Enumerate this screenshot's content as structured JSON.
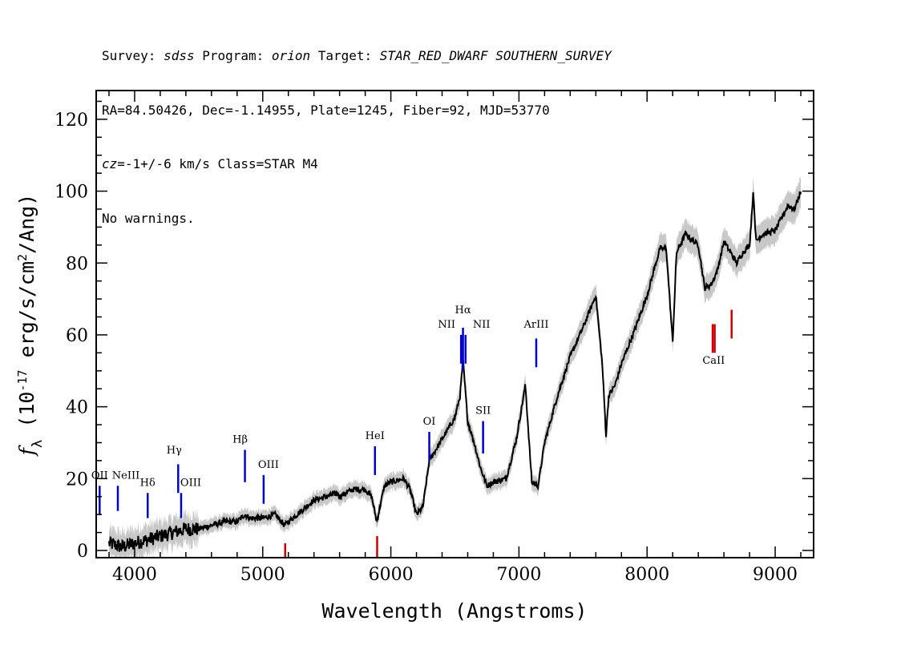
{
  "header": {
    "line1": {
      "survey_label": "Survey: ",
      "survey": "sdss",
      "program_label": " Program: ",
      "program": "orion",
      "target_label": " Target: ",
      "target": "STAR_RED_DWARF SOUTHERN_SURVEY"
    },
    "line2": "RA=84.50426, Dec=-1.14955, Plate=1245, Fiber=92, MJD=53770",
    "line3": {
      "cz_label": "cz",
      "cz_value": "=-1+/-6",
      "cz_unit": " km/s Class=STAR M4"
    },
    "line4": "No warnings."
  },
  "chart_data": {
    "type": "line",
    "xlabel": "Wavelength (Angstroms)",
    "ylabel_parts": [
      "f",
      "λ",
      " (10",
      "-17",
      " erg/s/cm",
      "2",
      "/Ang)"
    ],
    "xlim": [
      3700,
      9300
    ],
    "ylim": [
      -2,
      128
    ],
    "x_ticks": [
      4000,
      5000,
      6000,
      7000,
      8000,
      9000
    ],
    "y_ticks": [
      0,
      20,
      40,
      60,
      80,
      100,
      120
    ],
    "grid": false,
    "colors": {
      "flux": "#000000",
      "error_band": "#c8c8c8",
      "emission_lines": "#0000cc",
      "absorption_lines": "#cc0000"
    },
    "series": [
      {
        "x": [
          3800,
          3900,
          4000,
          4100,
          4200,
          4300,
          4400,
          4500,
          4600,
          4700,
          4800,
          4860,
          4900,
          5000,
          5100,
          5170,
          5200,
          5300,
          5400,
          5500,
          5580,
          5600,
          5700,
          5800,
          5850,
          5890,
          5950,
          6000,
          6100,
          6150,
          6200,
          6250,
          6300,
          6400,
          6500,
          6540,
          6563,
          6600,
          6650,
          6700,
          6750,
          6800,
          6900,
          6980,
          7050,
          7100,
          7150,
          7200,
          7300,
          7400,
          7500,
          7600,
          7650,
          7680,
          7700,
          7750,
          7800,
          7900,
          8000,
          8100,
          8150,
          8190,
          8200,
          8230,
          8300,
          8400,
          8450,
          8500,
          8550,
          8600,
          8700,
          8750,
          8800,
          8830,
          8850,
          8900,
          9000,
          9100,
          9150,
          9200
        ],
        "y": [
          2,
          1,
          2,
          3,
          4,
          5,
          6,
          6,
          7,
          8,
          8,
          10,
          9,
          9,
          10,
          7,
          8,
          11,
          14,
          15,
          16,
          15,
          17,
          17,
          15,
          8,
          18,
          19,
          20,
          17,
          10,
          12,
          25,
          31,
          37,
          43,
          53,
          36,
          30,
          23,
          18,
          19,
          20,
          31,
          46,
          19,
          18,
          30,
          43,
          54,
          62,
          71,
          52,
          32,
          43,
          46,
          52,
          61,
          71,
          84,
          84,
          63,
          58,
          83,
          88,
          85,
          73,
          74,
          78,
          86,
          80,
          83,
          85,
          100,
          86,
          88,
          89,
          96,
          95,
          100
        ]
      }
    ],
    "emission_lines": [
      {
        "label": "OII",
        "wavelength": 3727
      },
      {
        "label": "NeIII",
        "wavelength": 3869
      },
      {
        "label": "Hδ",
        "wavelength": 4102
      },
      {
        "label": "Hγ",
        "wavelength": 4340
      },
      {
        "label": "OIII",
        "wavelength": 4363
      },
      {
        "label": "Hβ",
        "wavelength": 4861
      },
      {
        "label": "OIII",
        "wavelength": 5007
      },
      {
        "label": "HeI",
        "wavelength": 5876
      },
      {
        "label": "OI",
        "wavelength": 6300
      },
      {
        "label": "NII",
        "wavelength": 6548
      },
      {
        "label": "Hα",
        "wavelength": 6563
      },
      {
        "label": "NII",
        "wavelength": 6583
      },
      {
        "label": "SII",
        "wavelength": 6720
      },
      {
        "label": "ArIII",
        "wavelength": 7135
      }
    ],
    "absorption_lines": [
      {
        "label": "",
        "wavelength": 5175
      },
      {
        "label": "",
        "wavelength": 5893
      },
      {
        "label": "CaII",
        "wavelength": 8520
      }
    ]
  }
}
